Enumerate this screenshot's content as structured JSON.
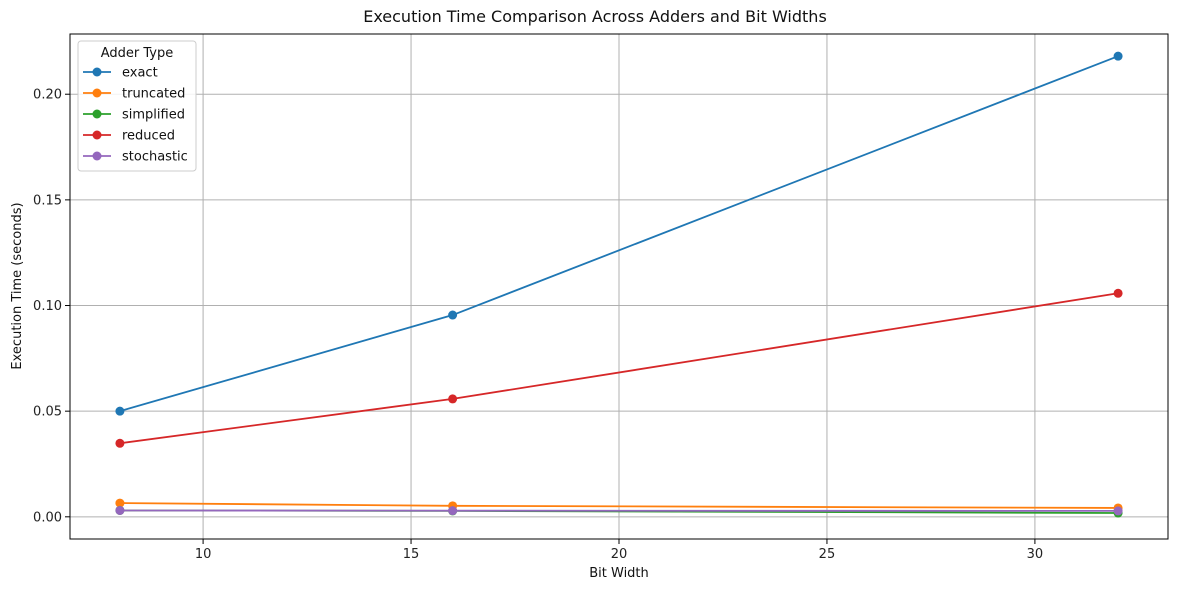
{
  "chart_data": {
    "type": "line",
    "title": "Execution Time Comparison Across Adders and Bit Widths",
    "xlabel": "Bit Width",
    "ylabel": "Execution Time (seconds)",
    "x": [
      8,
      16,
      32
    ],
    "xlim": [
      6.8,
      33.2
    ],
    "ylim": [
      -0.0105,
      0.2285
    ],
    "xticks": [
      10,
      15,
      20,
      25,
      30
    ],
    "yticks": [
      0.0,
      0.05,
      0.1,
      0.15,
      0.2
    ],
    "xtick_labels": [
      "10",
      "15",
      "20",
      "25",
      "30"
    ],
    "ytick_labels": [
      "0.00",
      "0.05",
      "0.10",
      "0.15",
      "0.20"
    ],
    "grid": true,
    "legend": {
      "title": "Adder Type",
      "position": "top-left"
    },
    "series": [
      {
        "name": "exact",
        "color": "#1f77b4",
        "values": [
          0.05,
          0.0955,
          0.218
        ]
      },
      {
        "name": "truncated",
        "color": "#ff7f0e",
        "values": [
          0.0065,
          0.0052,
          0.0042
        ]
      },
      {
        "name": "simplified",
        "color": "#2ca02c",
        "values": [
          0.003,
          0.0028,
          0.0018
        ]
      },
      {
        "name": "reduced",
        "color": "#d62728",
        "values": [
          0.0348,
          0.0558,
          0.1058
        ]
      },
      {
        "name": "stochastic",
        "color": "#9467bd",
        "values": [
          0.003,
          0.0029,
          0.0028
        ]
      }
    ]
  }
}
